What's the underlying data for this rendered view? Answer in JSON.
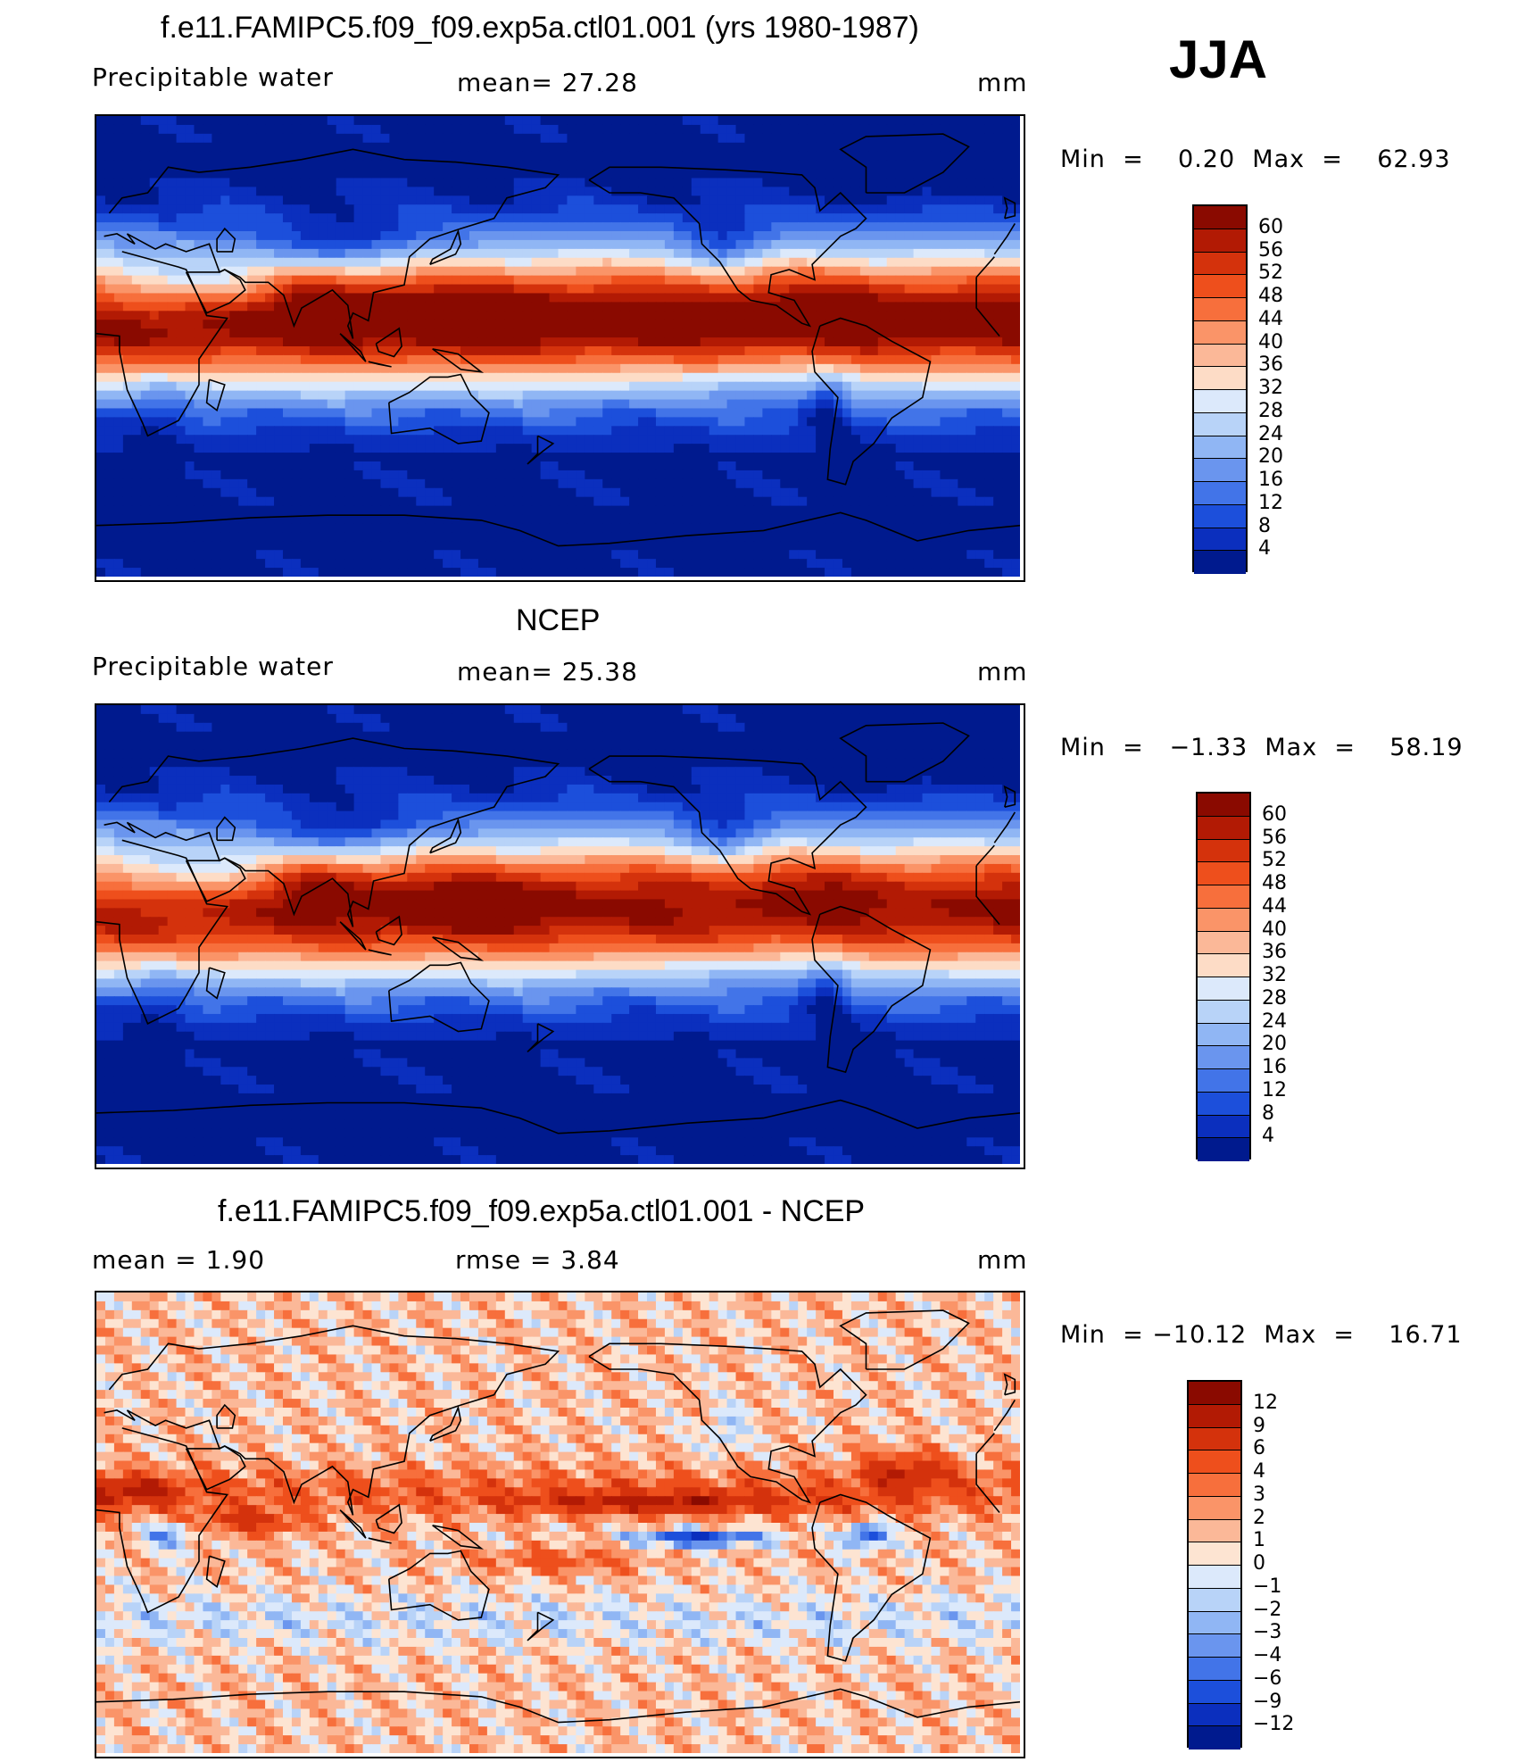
{
  "season": "JJA",
  "panels": [
    {
      "title": "f.e11.FAMIPC5.f09_f09.exp5a.ctl01.001 (yrs 1980-1987)",
      "left_label": "Precipitable  water",
      "center_label": "mean=   27.28",
      "units": "mm",
      "minmax": "Min  =    0.20  Max  =    62.93",
      "field": "precipitable-water",
      "colorbar": {
        "labels": [
          "60",
          "56",
          "52",
          "48",
          "44",
          "40",
          "36",
          "32",
          "28",
          "24",
          "20",
          "16",
          "12",
          "8",
          "4"
        ],
        "colors": [
          "#8a0a00",
          "#b21a04",
          "#d4320c",
          "#ee4f1c",
          "#f76f3c",
          "#fa9468",
          "#fbb898",
          "#fddcc6",
          "#dce9fb",
          "#b8d3f8",
          "#90b6f4",
          "#6a95ee",
          "#4274e8",
          "#1c4fdb",
          "#0b2fbe",
          "#001a8e"
        ]
      }
    },
    {
      "title": "NCEP",
      "left_label": "Precipitable  water",
      "center_label": "mean=   25.38",
      "units": "mm",
      "minmax": "Min  =   −1.33  Max  =    58.19",
      "field": "precipitable-water",
      "colorbar": {
        "labels": [
          "60",
          "56",
          "52",
          "48",
          "44",
          "40",
          "36",
          "32",
          "28",
          "24",
          "20",
          "16",
          "12",
          "8",
          "4"
        ],
        "colors": [
          "#8a0a00",
          "#b21a04",
          "#d4320c",
          "#ee4f1c",
          "#f76f3c",
          "#fa9468",
          "#fbb898",
          "#fddcc6",
          "#dce9fb",
          "#b8d3f8",
          "#90b6f4",
          "#6a95ee",
          "#4274e8",
          "#1c4fdb",
          "#0b2fbe",
          "#001a8e"
        ]
      }
    },
    {
      "title": "f.e11.FAMIPC5.f09_f09.exp5a.ctl01.001 - NCEP",
      "left_label": "mean  =      1.90",
      "center_label": "rmse  =      3.84",
      "units": "mm",
      "minmax": "Min  = −10.12  Max  =    16.71",
      "field": "difference",
      "colorbar": {
        "labels": [
          "12",
          "9",
          "6",
          "4",
          "3",
          "2",
          "1",
          "0",
          "−1",
          "−2",
          "−3",
          "−4",
          "−6",
          "−9",
          "−12"
        ],
        "colors": [
          "#8a0a00",
          "#b21a04",
          "#d4320c",
          "#ee4f1c",
          "#f76f3c",
          "#fa9468",
          "#fbb898",
          "#fde4d2",
          "#dce9fb",
          "#b8d3f8",
          "#90b6f4",
          "#6a95ee",
          "#4274e8",
          "#1c4fdb",
          "#0b2fbe",
          "#001a8e"
        ]
      }
    }
  ]
}
